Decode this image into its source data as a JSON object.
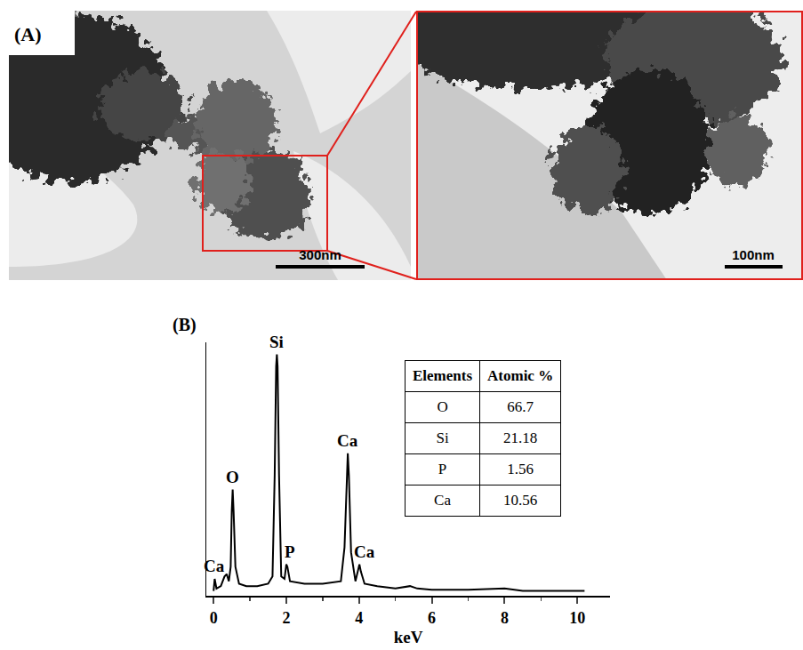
{
  "panel_a": {
    "label": "(A)",
    "images": [
      {
        "scale_bar": "300nm"
      },
      {
        "scale_bar": "100nm"
      }
    ]
  },
  "chart_data": {
    "label": "(B)",
    "type": "line",
    "color": "#000000",
    "xlabel": "keV",
    "x": [
      0.0,
      0.03,
      0.08,
      0.2,
      0.3,
      0.36,
      0.42,
      0.47,
      0.5,
      0.525,
      0.55,
      0.6,
      0.7,
      0.9,
      1.2,
      1.5,
      1.62,
      1.68,
      1.72,
      1.74,
      1.76,
      1.8,
      1.86,
      1.95,
      2.0,
      2.03,
      2.1,
      2.5,
      3.0,
      3.5,
      3.6,
      3.66,
      3.69,
      3.72,
      3.78,
      3.9,
      3.98,
      4.01,
      4.05,
      4.15,
      4.5,
      5.0,
      5.4,
      5.6,
      6.0,
      7.0,
      8.0,
      8.5,
      9.0,
      10.0,
      10.2
    ],
    "values": [
      2,
      7,
      3,
      4,
      8,
      9,
      6,
      12,
      35,
      44,
      35,
      12,
      5,
      4,
      4,
      5,
      8,
      50,
      95,
      100,
      95,
      50,
      8,
      7,
      13,
      12,
      6,
      5,
      5,
      6,
      20,
      50,
      59,
      50,
      18,
      6,
      11,
      13,
      10,
      5,
      4,
      3,
      4,
      3,
      2.5,
      2.5,
      3,
      2,
      2,
      2,
      2
    ],
    "xlim": [
      -0.2,
      10.9
    ],
    "xticks": [
      0,
      2,
      4,
      6,
      8,
      10
    ],
    "ylim": [
      0,
      105
    ],
    "tick_labels": "x",
    "annotations": [
      {
        "text": "Ca",
        "x": 0.03,
        "y": 7
      },
      {
        "text": "O",
        "x": 0.525,
        "y": 44
      },
      {
        "text": "Si",
        "x": 1.74,
        "y": 100
      },
      {
        "text": "P",
        "x": 2.1,
        "y": 13
      },
      {
        "text": "Ca",
        "x": 3.69,
        "y": 59
      },
      {
        "text": "Ca",
        "x": 4.15,
        "y": 13
      }
    ],
    "table": {
      "header": [
        "Elements",
        "Atomic %"
      ],
      "rows": [
        [
          "O",
          "66.7"
        ],
        [
          "Si",
          "21.18"
        ],
        [
          "P",
          "1.56"
        ],
        [
          "Ca",
          "10.56"
        ]
      ]
    }
  }
}
